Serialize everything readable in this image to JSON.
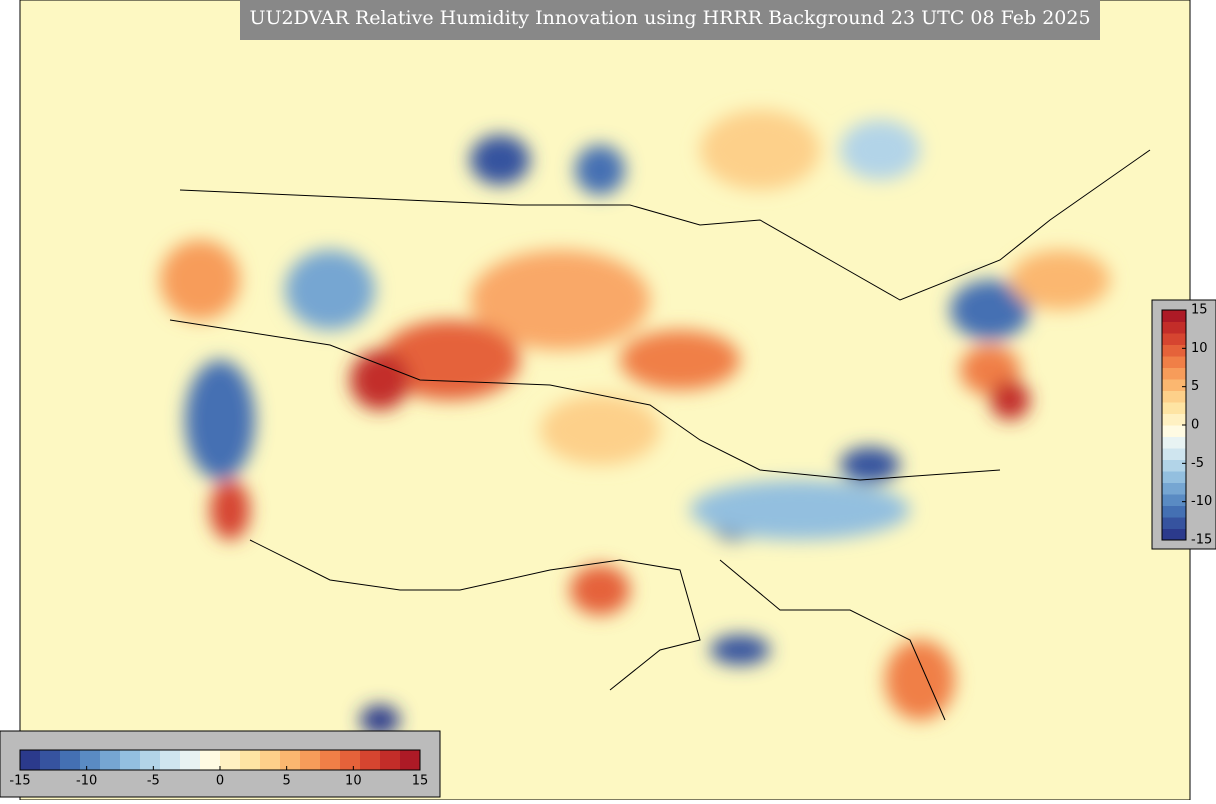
{
  "title": "UU2DVAR Relative Humidity Innovation using HRRR Background 23 UTC 08 Feb 2025",
  "colorbar": {
    "range": [
      -15,
      15
    ],
    "colors": [
      "#2b3a8c",
      "#36539f",
      "#4470b3",
      "#5a8bc3",
      "#76a6d2",
      "#93bfdf",
      "#b2d4e8",
      "#cfe5ef",
      "#e8f3f3",
      "#fffbe3",
      "#fff1c2",
      "#fee4a3",
      "#fdd08a",
      "#fbb770",
      "#f79c5a",
      "#f07f47",
      "#e5623a",
      "#d64530",
      "#c32d29",
      "#ad1a26"
    ],
    "ticks": [
      -15,
      -10,
      -5,
      0,
      5,
      10,
      15
    ]
  },
  "side_colorbar": {
    "ticks": [
      15,
      10,
      5,
      0,
      -5,
      -10,
      -15
    ]
  }
}
